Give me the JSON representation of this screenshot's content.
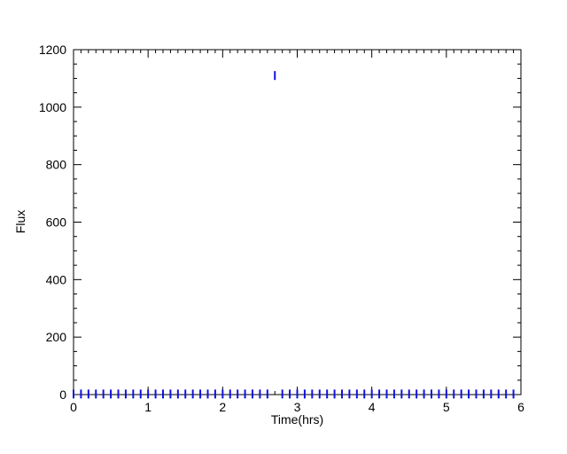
{
  "chart_data": {
    "type": "scatter",
    "title": "",
    "xlabel": "Time(hrs)",
    "ylabel": "Flux",
    "xlim": [
      0,
      6
    ],
    "ylim": [
      0,
      1200
    ],
    "xticks": [
      0,
      1,
      2,
      3,
      4,
      5,
      6
    ],
    "xtick_labels": [
      "0",
      "1",
      "2",
      "3",
      "4",
      "5",
      "6"
    ],
    "yticks": [
      0,
      200,
      400,
      600,
      800,
      1000,
      1200
    ],
    "ytick_labels": [
      "0",
      "200",
      "400",
      "600",
      "800",
      "1000",
      "1200"
    ],
    "x_minor_step": 0.1,
    "y_minor_step": 50,
    "grid": false,
    "legend": "none",
    "colors": {
      "series": "#1010e0",
      "axes": "#000000"
    },
    "series": [
      {
        "marker": "vertical-line",
        "x": [
          0.0,
          0.1,
          0.2,
          0.3,
          0.4,
          0.5,
          0.6,
          0.7,
          0.8,
          0.9,
          1.0,
          1.1,
          1.2,
          1.3,
          1.4,
          1.5,
          1.6,
          1.7,
          1.8,
          1.9,
          2.0,
          2.1,
          2.2,
          2.3,
          2.4,
          2.5,
          2.6,
          2.7,
          2.8,
          2.9,
          3.0,
          3.1,
          3.2,
          3.3,
          3.4,
          3.5,
          3.6,
          3.7,
          3.8,
          3.9,
          4.0,
          4.1,
          4.2,
          4.3,
          4.4,
          4.5,
          4.6,
          4.7,
          4.8,
          4.9,
          5.0,
          5.1,
          5.2,
          5.3,
          5.4,
          5.5,
          5.6,
          5.7,
          5.8,
          5.9
        ],
        "y": [
          2,
          2,
          2,
          2,
          2,
          2,
          2,
          2,
          2,
          2,
          2,
          2,
          2,
          2,
          2,
          2,
          2,
          2,
          2,
          2,
          2,
          2,
          2,
          2,
          2,
          2,
          2,
          1110,
          2,
          2,
          2,
          2,
          2,
          2,
          2,
          2,
          2,
          2,
          2,
          2,
          2,
          2,
          2,
          2,
          2,
          2,
          2,
          2,
          2,
          2,
          2,
          2,
          2,
          2,
          2,
          2,
          2,
          2,
          2,
          2
        ]
      }
    ]
  }
}
